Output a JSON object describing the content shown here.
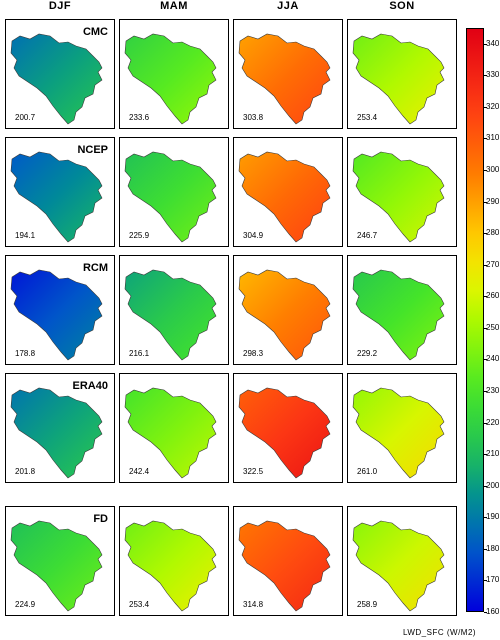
{
  "seasons": [
    "DJF",
    "MAM",
    "JJA",
    "SON"
  ],
  "models": [
    "CMC",
    "NCEP",
    "RCM",
    "ERA40",
    "FD"
  ],
  "panels": [
    [
      "200.7",
      "233.6",
      "303.8",
      "253.4"
    ],
    [
      "194.1",
      "225.9",
      "304.9",
      "246.7"
    ],
    [
      "178.8",
      "216.1",
      "298.3",
      "229.2"
    ],
    [
      "201.8",
      "242.4",
      "322.5",
      "261.0"
    ],
    [
      "224.9",
      "253.4",
      "314.8",
      "258.9"
    ]
  ],
  "colorbar": {
    "ticks": [
      "340",
      "330",
      "320",
      "310",
      "300",
      "290",
      "280",
      "270",
      "260",
      "250",
      "240",
      "230",
      "220",
      "210",
      "200",
      "190",
      "180",
      "170",
      "160"
    ],
    "min": 160,
    "max": 345,
    "units": "LWD_SFC (W/M2)"
  }
}
